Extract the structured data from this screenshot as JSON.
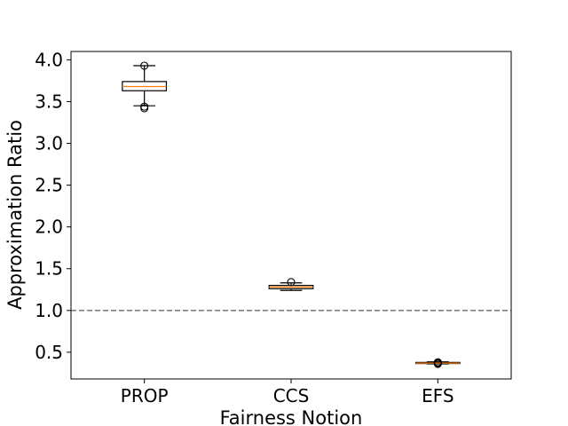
{
  "chart_data": {
    "type": "box",
    "xlabel": "Fairness Notion",
    "ylabel": "Approximation Ratio",
    "categories": [
      "PROP",
      "CCS",
      "EFS"
    ],
    "ylim": [
      0.18,
      4.1
    ],
    "yticks": [
      0.5,
      1.0,
      1.5,
      2.0,
      2.5,
      3.0,
      3.5,
      4.0
    ],
    "ytick_labels": [
      "0.5",
      "1.0",
      "1.5",
      "2.0",
      "2.5",
      "3.0",
      "3.5",
      "4.0"
    ],
    "reference_line": {
      "y": 1.0,
      "style": "dashed",
      "color": "#808080"
    },
    "boxes": [
      {
        "category": "PROP",
        "whisker_low": 3.45,
        "q1": 3.63,
        "median": 3.68,
        "q3": 3.74,
        "whisker_high": 3.93,
        "outliers": [
          3.42,
          3.44,
          3.93
        ]
      },
      {
        "category": "CCS",
        "whisker_low": 1.24,
        "q1": 1.26,
        "median": 1.28,
        "q3": 1.3,
        "whisker_high": 1.33,
        "outliers": [
          1.34
        ]
      },
      {
        "category": "EFS",
        "whisker_low": 0.36,
        "q1": 0.365,
        "median": 0.37,
        "q3": 0.378,
        "whisker_high": 0.385,
        "outliers": [
          0.36,
          0.37,
          0.38
        ]
      }
    ],
    "grid": false,
    "colors": {
      "box": "#000000",
      "median": "#ff7f0e",
      "reference": "#808080"
    }
  }
}
